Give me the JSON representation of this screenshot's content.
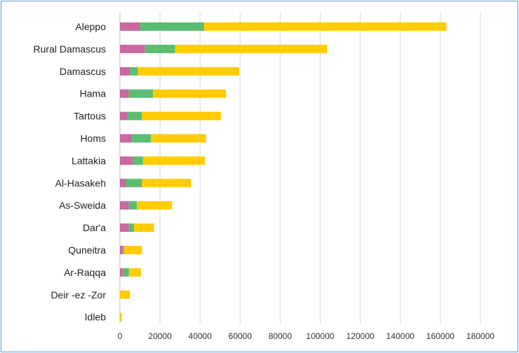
{
  "chart_data": {
    "type": "bar",
    "orientation": "horizontal",
    "stacked": true,
    "categories": [
      "Aleppo",
      "Rural Damascus",
      "Damascus",
      "Hama",
      "Tartous",
      "Homs",
      "Lattakia",
      "Al-Hasakeh",
      "As-Sweida",
      "Dar'a",
      "Quneitra",
      "Ar-Raqqa",
      "Deir -ez -Zor",
      "Idleb"
    ],
    "series": [
      {
        "color": "#c9699f",
        "values": [
          10000,
          12500,
          5000,
          4500,
          3500,
          6000,
          6500,
          3000,
          4500,
          4500,
          1500,
          1500,
          0,
          0
        ]
      },
      {
        "color": "#5bbd72",
        "values": [
          32000,
          15000,
          4000,
          12000,
          7500,
          9500,
          5000,
          8000,
          4000,
          2500,
          500,
          3000,
          0,
          0
        ]
      },
      {
        "color": "#ffcc00",
        "values": [
          121000,
          76000,
          50500,
          36500,
          39500,
          27500,
          31000,
          24500,
          17500,
          10000,
          9000,
          6000,
          5000,
          1000
        ]
      }
    ],
    "xlim": [
      0,
      180000
    ],
    "xticks": [
      "0",
      "20000",
      "40000",
      "60000",
      "80000",
      "100000",
      "120000",
      "140000",
      "160000",
      "180000"
    ],
    "grid": "vertical",
    "legend": "none"
  }
}
